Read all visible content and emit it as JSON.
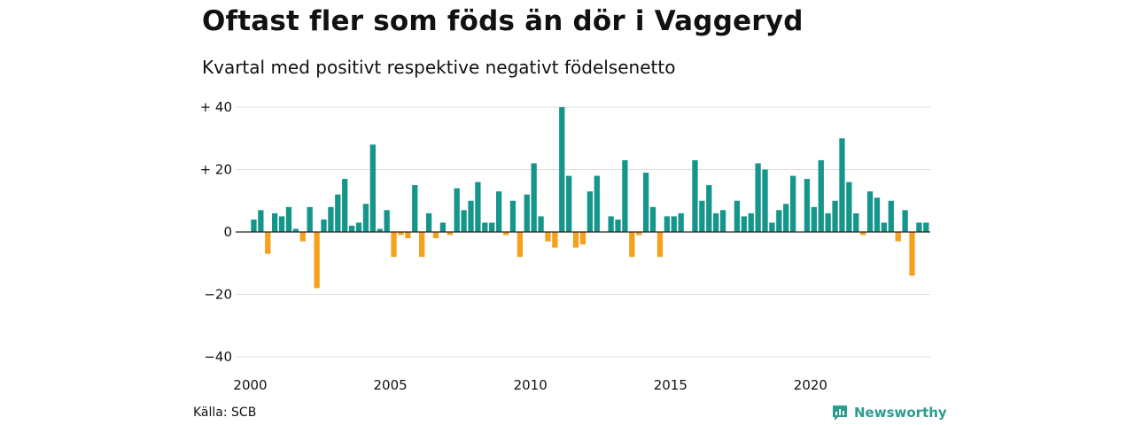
{
  "title": "Oftast fler som föds än dör i Vaggeryd",
  "subtitle": "Kvartal med positivt respektive negativt födelsenetto",
  "source": "Källa: SCB",
  "brand": "Newsworthy",
  "colors": {
    "positive": "#16968a",
    "negative": "#f5a11c",
    "grid": "#dddddd",
    "axis": "#222222"
  },
  "chart_data": {
    "type": "bar",
    "x_start": "2000 Q1",
    "x_step": "quarter",
    "values": [
      4,
      7,
      -7,
      6,
      5,
      8,
      1,
      -3,
      8,
      -18,
      4,
      8,
      12,
      17,
      2,
      3,
      9,
      28,
      1,
      7,
      -8,
      -1,
      -2,
      15,
      -8,
      6,
      -2,
      3,
      -1,
      14,
      7,
      10,
      16,
      3,
      3,
      13,
      -1,
      10,
      -8,
      12,
      22,
      5,
      -3,
      -5,
      40,
      18,
      -5,
      -4,
      13,
      18,
      0,
      5,
      4,
      23,
      -8,
      -1,
      19,
      8,
      -8,
      5,
      5,
      6,
      0,
      23,
      10,
      15,
      6,
      7,
      0,
      10,
      5,
      6,
      22,
      20,
      3,
      7,
      9,
      18,
      0,
      17,
      8,
      23,
      6,
      10,
      30,
      16,
      6,
      -1,
      13,
      11,
      3,
      10,
      -3,
      7,
      -14,
      3,
      3
    ],
    "ylim": [
      -40,
      40
    ],
    "y_ticks": [
      {
        "value": 40,
        "label": "+ 40"
      },
      {
        "value": 20,
        "label": "+ 20"
      },
      {
        "value": 0,
        "label": "0"
      },
      {
        "value": -20,
        "label": "−20"
      },
      {
        "value": -40,
        "label": "−40"
      }
    ],
    "x_ticks": [
      {
        "value": 2000,
        "label": "2000"
      },
      {
        "value": 2005,
        "label": "2005"
      },
      {
        "value": 2010,
        "label": "2010"
      },
      {
        "value": 2015,
        "label": "2015"
      },
      {
        "value": 2020,
        "label": "2020"
      }
    ],
    "grid": true,
    "legend": "none"
  }
}
